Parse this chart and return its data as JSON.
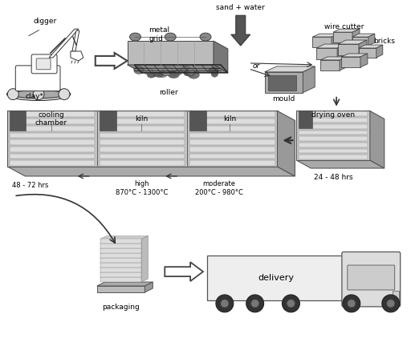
{
  "background_color": "#ffffff",
  "text_color": "#000000",
  "labels": {
    "digger": "digger",
    "clay": "clay*",
    "roller": "roller",
    "metal_grid": "metal\ngrid",
    "sand_water": "sand + water",
    "or": "or",
    "mould": "mould",
    "wire_cutter": "wire cutter",
    "bricks": "bricks",
    "drying_oven": "drying oven",
    "drying_time": "24 - 48 hrs",
    "kiln1": "kiln",
    "kiln2": "kiln",
    "cooling_chamber": "cooling\nchamber",
    "moderate": "moderate\n200°C - 980°C",
    "high": "high\n870°C - 1300°C",
    "cooling_time": "48 - 72 hrs",
    "packaging": "packaging",
    "delivery": "delivery"
  }
}
